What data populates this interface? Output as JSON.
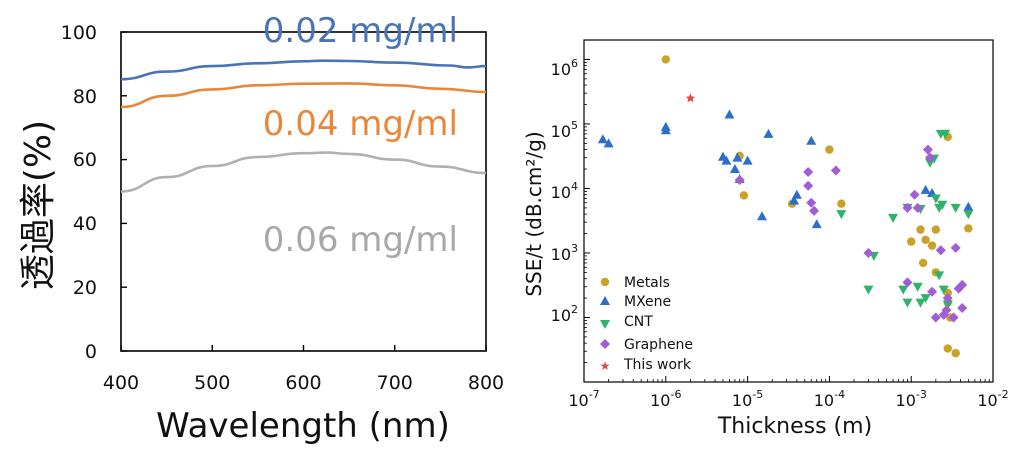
{
  "chart_data": [
    {
      "type": "line",
      "xlabel": "Wavelength (nm)",
      "ylabel": "透過率(%)",
      "xlim": [
        400,
        800
      ],
      "ylim": [
        0,
        100
      ],
      "xticks": [
        "400",
        "500",
        "600",
        "700",
        "800"
      ],
      "yticks": [
        "0",
        "20",
        "40",
        "60",
        "80",
        "100"
      ],
      "grid": false,
      "series": [
        {
          "name": "0.02 mg/ml",
          "color": "#4a74b8",
          "x": [
            400,
            450,
            500,
            550,
            600,
            620,
            650,
            700,
            760,
            780,
            800
          ],
          "y": [
            85.2,
            87.6,
            89.3,
            90.2,
            90.8,
            91.0,
            90.9,
            90.4,
            89.5,
            88.9,
            89.3
          ]
        },
        {
          "name": "0.04 mg/ml",
          "color": "#e8873a",
          "x": [
            400,
            450,
            500,
            550,
            600,
            650,
            700,
            750,
            800
          ],
          "y": [
            76.5,
            80.0,
            82.0,
            83.3,
            83.8,
            83.9,
            83.3,
            82.2,
            81.2
          ]
        },
        {
          "name": "0.06 mg/ml",
          "color": "#b0b0b0",
          "x": [
            400,
            450,
            500,
            550,
            600,
            625,
            650,
            700,
            750,
            800
          ],
          "y": [
            50.0,
            54.5,
            58.0,
            60.8,
            62.0,
            62.2,
            61.8,
            60.0,
            57.8,
            55.8
          ]
        }
      ]
    },
    {
      "type": "scatter",
      "xlabel": "Thickness (m)",
      "ylabel": "SSE/t (dB.cm²/g)",
      "xscale": "log",
      "yscale": "log",
      "xlim": [
        1e-07,
        0.01
      ],
      "ylim": [
        10,
        2000000.0
      ],
      "xtick_labels": [
        {
          "base": "10",
          "exp": "-7"
        },
        {
          "base": "10",
          "exp": "-6"
        },
        {
          "base": "10",
          "exp": "-5"
        },
        {
          "base": "10",
          "exp": "-4"
        },
        {
          "base": "10",
          "exp": "-3"
        },
        {
          "base": "10",
          "exp": "-2"
        }
      ],
      "ytick_labels": [
        {
          "base": "10",
          "exp": "2"
        },
        {
          "base": "10",
          "exp": "3"
        },
        {
          "base": "10",
          "exp": "4"
        },
        {
          "base": "10",
          "exp": "5"
        },
        {
          "base": "10",
          "exp": "6"
        }
      ],
      "legend_position": "bottom-left",
      "series": [
        {
          "name": "Metals",
          "marker": "circle",
          "color": "#c9a227",
          "points": [
            [
              1e-06,
              1000000
            ],
            [
              8e-06,
              32000
            ],
            [
              9e-06,
              7800
            ],
            [
              3.5e-05,
              5800
            ],
            [
              0.0001,
              40000
            ],
            [
              0.00014,
              5800
            ],
            [
              0.001,
              1500
            ],
            [
              0.0013,
              2300
            ],
            [
              0.0014,
              700
            ],
            [
              0.0015,
              1600
            ],
            [
              0.0018,
              1300
            ],
            [
              0.002,
              2300
            ],
            [
              0.002,
              500
            ],
            [
              0.0028,
              63000
            ],
            [
              0.0028,
              240
            ],
            [
              0.0028,
              170
            ],
            [
              0.003,
              100
            ],
            [
              0.0028,
              33
            ],
            [
              0.0035,
              28
            ],
            [
              0.005,
              2400
            ]
          ]
        },
        {
          "name": "MXene",
          "marker": "triangle-up",
          "color": "#2a6fc9",
          "points": [
            [
              1.7e-07,
              58000
            ],
            [
              2e-07,
              50000
            ],
            [
              1e-06,
              90000
            ],
            [
              1e-06,
              80000
            ],
            [
              5e-06,
              31000
            ],
            [
              5.5e-06,
              27000
            ],
            [
              6e-06,
              140000
            ],
            [
              7e-06,
              20000
            ],
            [
              7.5e-06,
              30000
            ],
            [
              8e-06,
              14000
            ],
            [
              1e-05,
              27000
            ],
            [
              1.5e-05,
              3700
            ],
            [
              1.8e-05,
              70000
            ],
            [
              3.7e-05,
              6500
            ],
            [
              4e-05,
              8000
            ],
            [
              6e-05,
              55000
            ],
            [
              7e-05,
              2800
            ],
            [
              0.0015,
              9500
            ],
            [
              0.0018,
              8500
            ],
            [
              0.005,
              5200
            ]
          ]
        },
        {
          "name": "CNT",
          "marker": "triangle-down",
          "color": "#2fb36a",
          "points": [
            [
              0.00014,
              4000
            ],
            [
              0.0003,
              270
            ],
            [
              0.00035,
              900
            ],
            [
              0.0006,
              3500
            ],
            [
              0.0008,
              270
            ],
            [
              0.0009,
              5000
            ],
            [
              0.0009,
              170
            ],
            [
              0.0012,
              300
            ],
            [
              0.0013,
              4800
            ],
            [
              0.0013,
              170
            ],
            [
              0.0015,
              200
            ],
            [
              0.0017,
              25000
            ],
            [
              0.0019,
              29000
            ],
            [
              0.002,
              7000
            ],
            [
              0.0022,
              5000
            ],
            [
              0.0022,
              450
            ],
            [
              0.0023,
              70000
            ],
            [
              0.0024,
              5600
            ],
            [
              0.0026,
              70000
            ],
            [
              0.0025,
              270
            ],
            [
              0.0028,
              160
            ],
            [
              0.0035,
              5000
            ],
            [
              0.005,
              4000
            ]
          ]
        },
        {
          "name": "Graphene",
          "marker": "diamond",
          "color": "#a05dd6",
          "points": [
            [
              8e-06,
              13500
            ],
            [
              5.5e-05,
              18000
            ],
            [
              5.5e-05,
              11000
            ],
            [
              6e-05,
              6000
            ],
            [
              6.5e-05,
              4500
            ],
            [
              0.00012,
              19000
            ],
            [
              0.0003,
              1000
            ],
            [
              0.0009,
              5000
            ],
            [
              0.0009,
              350
            ],
            [
              0.0011,
              8000
            ],
            [
              0.0012,
              5000
            ],
            [
              0.0016,
              40000
            ],
            [
              0.0017,
              30000
            ],
            [
              0.0018,
              250
            ],
            [
              0.002,
              100
            ],
            [
              0.0023,
              1100
            ],
            [
              0.0025,
              110
            ],
            [
              0.0027,
              130
            ],
            [
              0.0028,
              200
            ],
            [
              0.0033,
              100
            ],
            [
              0.0035,
              1200
            ],
            [
              0.0038,
              280
            ],
            [
              0.0042,
              320
            ],
            [
              0.0042,
              140
            ]
          ]
        },
        {
          "name": "This work",
          "marker": "star",
          "color": "#e04848",
          "points": [
            [
              2e-06,
              250000
            ]
          ]
        }
      ]
    }
  ]
}
